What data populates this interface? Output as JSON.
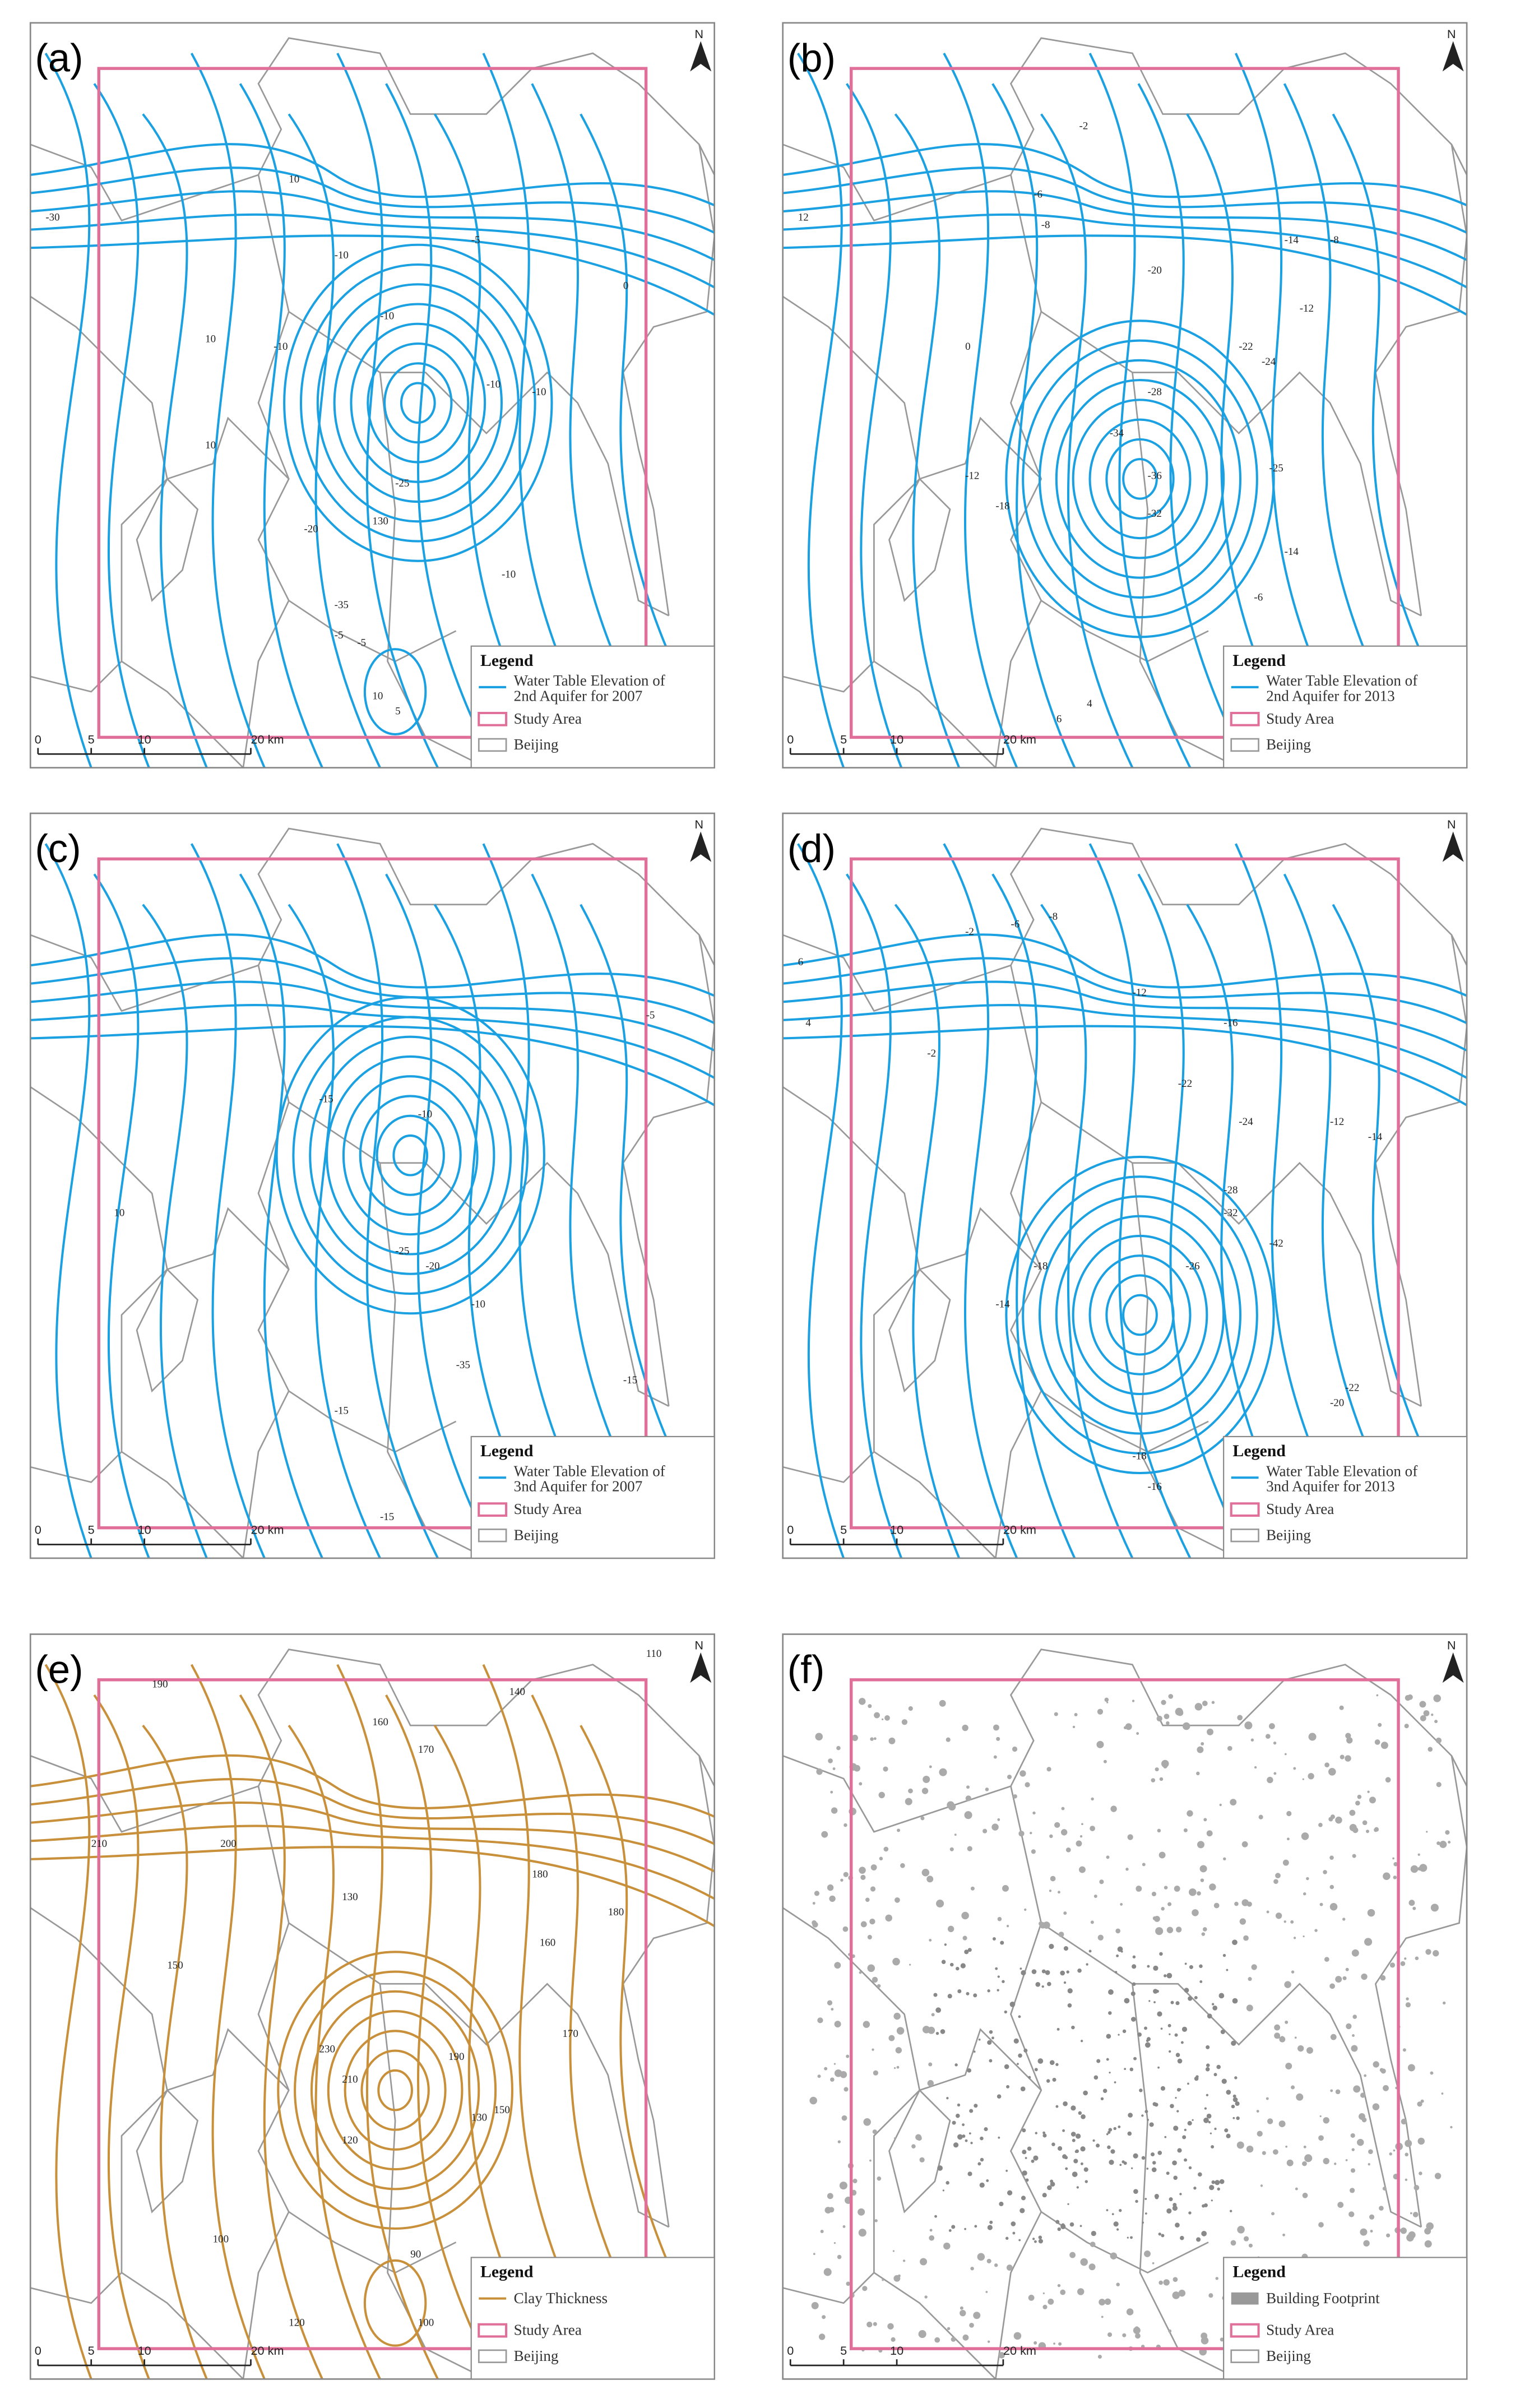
{
  "panels": [
    {
      "label": "(a)",
      "north": "N",
      "color": "#1ba1e2",
      "legend": {
        "title": "Legend",
        "items": [
          {
            "lines": [
              "Water Table Elevation of",
              "2nd Aquifer for 2007"
            ]
          },
          {
            "lines": [
              "Study Area"
            ]
          },
          {
            "lines": [
              "Beijing"
            ]
          }
        ]
      },
      "scale": [
        "0",
        "5",
        "10",
        "20 km"
      ],
      "contour_labels": [
        "-30",
        "10",
        "-10",
        "-5",
        "0",
        "-10",
        "-10",
        "-10",
        "10",
        "10",
        "-10",
        "-25",
        "-20",
        "130",
        "-10",
        "-35",
        "-5",
        "-5",
        "10",
        "5"
      ]
    },
    {
      "label": "(b)",
      "north": "N",
      "color": "#1ba1e2",
      "legend": {
        "title": "Legend",
        "items": [
          {
            "lines": [
              "Water Table Elevation of",
              "2nd Aquifer for 2013"
            ]
          },
          {
            "lines": [
              "Study Area"
            ]
          },
          {
            "lines": [
              "Beijing"
            ]
          }
        ]
      },
      "scale": [
        "0",
        "5",
        "10",
        "20 km"
      ],
      "contour_labels": [
        "12",
        "-2",
        "-6",
        "-8",
        "-14",
        "-8",
        "-12",
        "-20",
        "-22",
        "-24",
        "-28",
        "-34",
        "-36",
        "-32",
        "-25",
        "-12",
        "-18",
        "-14",
        "-6",
        "4",
        "6",
        "0"
      ]
    },
    {
      "label": "(c)",
      "north": "N",
      "color": "#1ba1e2",
      "legend": {
        "title": "Legend",
        "items": [
          {
            "lines": [
              "Water Table Elevation of",
              "3nd Aquifer for 2007"
            ]
          },
          {
            "lines": [
              "Study Area"
            ]
          },
          {
            "lines": [
              "Beijing"
            ]
          }
        ]
      },
      "scale": [
        "0",
        "5",
        "10",
        "20 km"
      ],
      "contour_labels": [
        "-5",
        "-15",
        "-10",
        "10",
        "-25",
        "-20",
        "-10",
        "-35",
        "-15",
        "-15",
        "-20",
        "-15"
      ]
    },
    {
      "label": "(d)",
      "north": "N",
      "color": "#1ba1e2",
      "legend": {
        "title": "Legend",
        "items": [
          {
            "lines": [
              "Water Table Elevation of",
              "3nd Aquifer for 2013"
            ]
          },
          {
            "lines": [
              "Study Area"
            ]
          },
          {
            "lines": [
              "Beijing"
            ]
          }
        ]
      },
      "scale": [
        "0",
        "5",
        "10",
        "20 km"
      ],
      "contour_labels": [
        "-2",
        "-6",
        "-8",
        "-12",
        "-16",
        "-22",
        "-24",
        "-12",
        "-14",
        "6",
        "4",
        "-2",
        "-28",
        "-32",
        "-42",
        "-26",
        "-18",
        "-14",
        "-20",
        "-22",
        "-18",
        "-16"
      ]
    },
    {
      "label": "(e)",
      "north": "N",
      "color": "#c8903a",
      "legend": {
        "title": "Legend",
        "items": [
          {
            "lines": [
              "Clay Thickness"
            ]
          },
          {
            "lines": [
              "Study Area"
            ]
          },
          {
            "lines": [
              "Beijing"
            ]
          }
        ]
      },
      "scale": [
        "0",
        "5",
        "10",
        "20 km"
      ],
      "contour_labels": [
        "110",
        "140",
        "160",
        "170",
        "180",
        "190",
        "210",
        "200",
        "130",
        "160",
        "170",
        "180",
        "150",
        "230",
        "210",
        "190",
        "130",
        "150",
        "120",
        "100",
        "120",
        "130",
        "90",
        "100",
        "130",
        "140"
      ]
    },
    {
      "label": "(f)",
      "north": "N",
      "color": "#999999",
      "legend": {
        "title": "Legend",
        "items": [
          {
            "lines": [
              "Building Footprint"
            ]
          },
          {
            "lines": [
              "Study Area"
            ]
          },
          {
            "lines": [
              "Beijing"
            ]
          }
        ]
      },
      "scale": [
        "0",
        "5",
        "10",
        "20 km"
      ],
      "contour_labels": []
    }
  ]
}
